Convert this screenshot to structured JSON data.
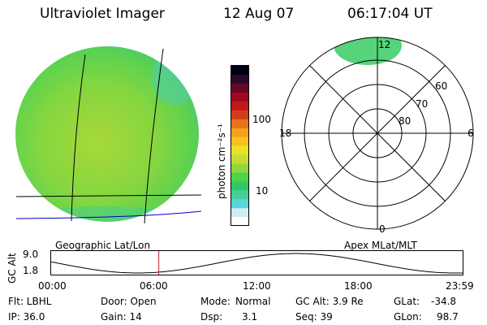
{
  "header": {
    "instrument": "Ultraviolet Imager",
    "date": "12 Aug 07",
    "time": "06:17:04 UT"
  },
  "colorbar": {
    "unit_label": "photon cm⁻²s⁻¹",
    "scale": "log",
    "ticks": [
      {
        "label": "100",
        "value": 100
      },
      {
        "label": "10",
        "value": 10
      }
    ],
    "colors": [
      "#ffffff",
      "#cfeef0",
      "#5ad5d8",
      "#44cf96",
      "#2ec868",
      "#52d24a",
      "#8fd83e",
      "#c6dc32",
      "#e8e22a",
      "#f8c020",
      "#f6a01c",
      "#e7731a",
      "#d43c19",
      "#c01a1a",
      "#a00820",
      "#6a0628",
      "#2a0a2a",
      "#000014"
    ]
  },
  "image_panel": {
    "label": "Geographic Lat/Lon",
    "base_color": "#6ad64a"
  },
  "polar_panel": {
    "label": "Apex MLat/MLT",
    "mlt_labels": [
      "12",
      "6",
      "0",
      "18"
    ],
    "mlat_labels": [
      "60",
      "70",
      "80"
    ],
    "auroral_color": "#56d47a"
  },
  "alt_plot": {
    "ylabel": "GC Alt",
    "yticks": [
      "9.0",
      "1.8"
    ],
    "xticks": [
      "00:00",
      "06:00",
      "12:00",
      "18:00",
      "23:59"
    ],
    "current_time_hours": 6.28,
    "marker_color": "#c02020"
  },
  "footer": {
    "row1": {
      "filter": "Flt: LBHL",
      "door": "Door: Open",
      "mode_label": "Mode:",
      "mode_value": "Normal",
      "gc_alt": "GC Alt: 3.9 Re",
      "glat_label": "GLat:",
      "glat_value": "-34.8"
    },
    "row2": {
      "ip": "IP: 36.0",
      "gain": "Gain: 14",
      "dsp_label": "Dsp:",
      "dsp_value": "3.1",
      "seq": "Seq: 39",
      "glon_label": "GLon:",
      "glon_value": "98.7"
    }
  }
}
